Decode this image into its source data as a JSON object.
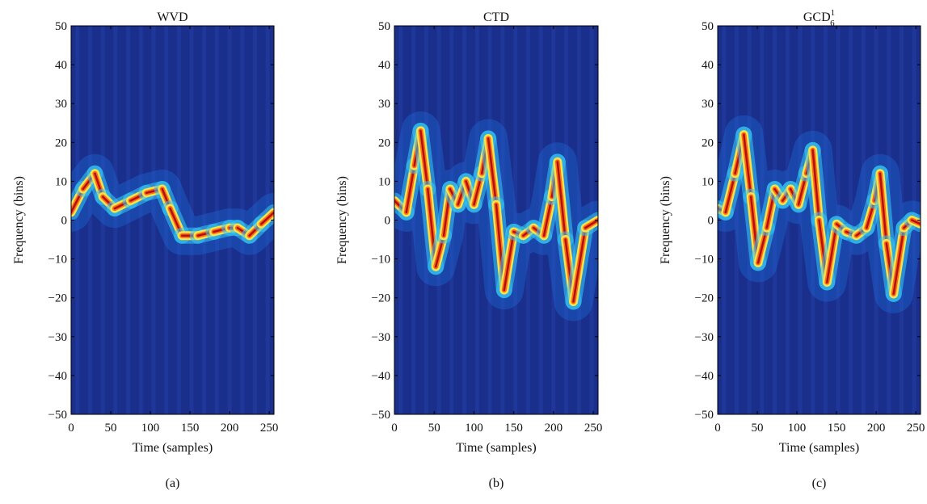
{
  "chart_data": [
    {
      "type": "heatmap",
      "title": "WVD",
      "xlabel": "Time (samples)",
      "ylabel": "Frequency (bins)",
      "caption": "(a)",
      "xlim": [
        0,
        256
      ],
      "ylim": [
        -50,
        50
      ],
      "x_ticks": [
        0,
        50,
        100,
        150,
        200,
        250
      ],
      "y_ticks": [
        -50,
        -40,
        -30,
        -20,
        -10,
        0,
        10,
        20,
        30,
        40,
        50
      ],
      "colormap": "jet",
      "background_color": "#1a2f8c",
      "ridge": [
        [
          0,
          2
        ],
        [
          15,
          8
        ],
        [
          30,
          12
        ],
        [
          40,
          6
        ],
        [
          55,
          3
        ],
        [
          75,
          5
        ],
        [
          95,
          7
        ],
        [
          115,
          8
        ],
        [
          125,
          3
        ],
        [
          140,
          -4
        ],
        [
          160,
          -4
        ],
        [
          180,
          -3
        ],
        [
          200,
          -2
        ],
        [
          210,
          -2
        ],
        [
          225,
          -4
        ],
        [
          240,
          -1
        ],
        [
          256,
          2
        ]
      ]
    },
    {
      "type": "heatmap",
      "title": "CTD",
      "xlabel": "Time (samples)",
      "ylabel": "Frequency (bins)",
      "caption": "(b)",
      "xlim": [
        0,
        256
      ],
      "ylim": [
        -50,
        50
      ],
      "x_ticks": [
        0,
        50,
        100,
        150,
        200,
        250
      ],
      "y_ticks": [
        -50,
        -40,
        -30,
        -20,
        -10,
        0,
        10,
        20,
        30,
        40,
        50
      ],
      "colormap": "jet",
      "background_color": "#1a2f8c",
      "ridge": [
        [
          0,
          5
        ],
        [
          15,
          2
        ],
        [
          25,
          14
        ],
        [
          33,
          23
        ],
        [
          42,
          8
        ],
        [
          52,
          -12
        ],
        [
          62,
          -4
        ],
        [
          70,
          8
        ],
        [
          80,
          4
        ],
        [
          90,
          10
        ],
        [
          100,
          4
        ],
        [
          110,
          12
        ],
        [
          118,
          21
        ],
        [
          128,
          4
        ],
        [
          138,
          -18
        ],
        [
          150,
          -3
        ],
        [
          162,
          -4
        ],
        [
          175,
          -2
        ],
        [
          188,
          -4
        ],
        [
          198,
          6
        ],
        [
          205,
          15
        ],
        [
          215,
          -5
        ],
        [
          225,
          -21
        ],
        [
          240,
          -2
        ],
        [
          256,
          0
        ]
      ]
    },
    {
      "type": "heatmap",
      "title": "GCD",
      "title_sup": "1",
      "title_sub": "6",
      "xlabel": "Time (samples)",
      "ylabel": "Frequency (bins)",
      "caption": "(c)",
      "xlim": [
        0,
        256
      ],
      "ylim": [
        -50,
        50
      ],
      "x_ticks": [
        0,
        50,
        100,
        150,
        200,
        250
      ],
      "y_ticks": [
        -50,
        -40,
        -30,
        -20,
        -10,
        0,
        10,
        20,
        30,
        40,
        50
      ],
      "colormap": "jet",
      "background_color": "#1a2f8c",
      "ridge": [
        [
          0,
          3
        ],
        [
          10,
          2
        ],
        [
          22,
          12
        ],
        [
          33,
          22
        ],
        [
          42,
          6
        ],
        [
          51,
          -11
        ],
        [
          62,
          -2
        ],
        [
          72,
          8
        ],
        [
          82,
          5
        ],
        [
          92,
          8
        ],
        [
          102,
          4
        ],
        [
          112,
          12
        ],
        [
          120,
          18
        ],
        [
          128,
          0
        ],
        [
          138,
          -16
        ],
        [
          150,
          -1
        ],
        [
          162,
          -3
        ],
        [
          175,
          -4
        ],
        [
          188,
          -2
        ],
        [
          198,
          5
        ],
        [
          205,
          12
        ],
        [
          213,
          -6
        ],
        [
          222,
          -19
        ],
        [
          235,
          -2
        ],
        [
          245,
          0
        ],
        [
          256,
          -1
        ]
      ]
    }
  ]
}
